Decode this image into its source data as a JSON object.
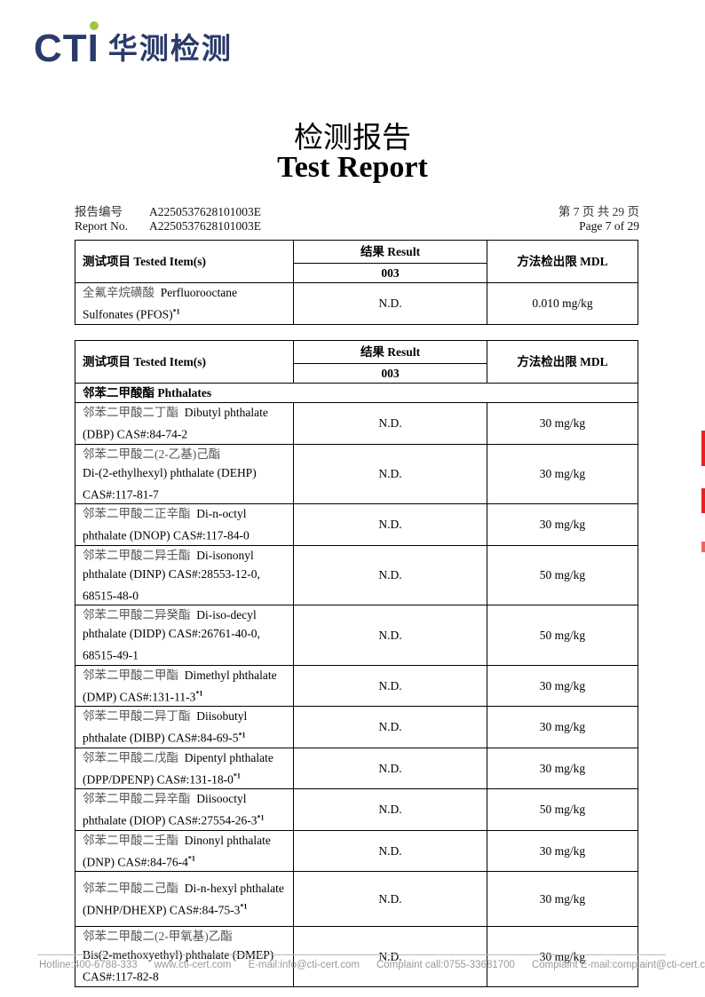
{
  "logo": {
    "brand": "CTI",
    "name_cn": "华测检测",
    "accent": "#9bc93b",
    "color": "#2b3a6b"
  },
  "title_cn": "检测报告",
  "title_en": "Test Report",
  "meta": {
    "report_no_label_cn": "报告编号",
    "report_no_label_en": "Report No.",
    "report_no": "A2250537628101003E",
    "page_cn": "第 7 页  共 29 页",
    "page_en": "Page 7 of 29"
  },
  "headers": {
    "item": "测试项目 Tested Item(s)",
    "result": "结果 Result",
    "sample": "003",
    "mdl": "方法检出限 MDL"
  },
  "table1": [
    {
      "cn": "全氟辛烷磺酸",
      "en": "Perfluorooctane Sulfonates (PFOS)",
      "sup": "*1",
      "result": "N.D.",
      "mdl": "0.010 mg/kg"
    }
  ],
  "table2": {
    "section": "邻苯二甲酸酯 Phthalates",
    "rows": [
      {
        "cn": "邻苯二甲酸二丁酯",
        "en": "Dibutyl phthalate (DBP) CAS#:84-74-2",
        "sup": "",
        "result": "N.D.",
        "mdl": "30 mg/kg"
      },
      {
        "cn": "邻苯二甲酸二(2-乙基)己酯",
        "en": "Di-(2-ethylhexyl) phthalate (DEHP) CAS#:117-81-7",
        "sup": "",
        "result": "N.D.",
        "mdl": "30 mg/kg",
        "br": true
      },
      {
        "cn": "邻苯二甲酸二正辛酯",
        "en": "Di-n-octyl phthalate (DNOP) CAS#:117-84-0",
        "sup": "",
        "result": "N.D.",
        "mdl": "30 mg/kg"
      },
      {
        "cn": "邻苯二甲酸二异壬酯",
        "en": "Di-isononyl phthalate (DINP) CAS#:28553-12-0, 68515-48-0",
        "sup": "",
        "result": "N.D.",
        "mdl": "50 mg/kg"
      },
      {
        "cn": "邻苯二甲酸二异癸酯",
        "en": "Di-iso-decyl phthalate (DIDP) CAS#:26761-40-0, 68515-49-1",
        "sup": "",
        "result": "N.D.",
        "mdl": "50 mg/kg"
      },
      {
        "cn": "邻苯二甲酸二甲酯",
        "en": "Dimethyl phthalate (DMP) CAS#:131-11-3",
        "sup": "*1",
        "result": "N.D.",
        "mdl": "30 mg/kg"
      },
      {
        "cn": "邻苯二甲酸二异丁酯",
        "en": "Diisobutyl phthalate (DIBP) CAS#:84-69-5",
        "sup": "*1",
        "result": "N.D.",
        "mdl": "30 mg/kg"
      },
      {
        "cn": "邻苯二甲酸二戊酯",
        "en": "Dipentyl phthalate (DPP/DPENP) CAS#:131-18-0",
        "sup": "*1",
        "result": "N.D.",
        "mdl": "30 mg/kg"
      },
      {
        "cn": "邻苯二甲酸二异辛酯",
        "en": "Diisooctyl phthalate (DIOP) CAS#:27554-26-3",
        "sup": "*1",
        "result": "N.D.",
        "mdl": "50 mg/kg"
      },
      {
        "cn": "邻苯二甲酸二壬酯",
        "en": "Dinonyl phthalate (DNP) CAS#:84-76-4",
        "sup": "*1",
        "result": "N.D.",
        "mdl": "30 mg/kg"
      },
      {
        "cn": "邻苯二甲酸二己酯",
        "en": "Di-n-hexyl phthalate (DNHP/DHEXP) CAS#:84-75-3",
        "sup": "*1",
        "result": "N.D.",
        "mdl": "30 mg/kg"
      },
      {
        "cn": "邻苯二甲酸二(2-甲氧基)乙酯",
        "en": "Bis(2-methoxyethyl) phthalate (DMEP) CAS#:117-82-8",
        "sup": "",
        "result": "N.D.",
        "mdl": "30 mg/kg",
        "br": true
      }
    ]
  },
  "footer": [
    "Hotline:400-6788-333",
    "www.cti-cert.com",
    "E-mail:info@cti-cert.com",
    "Complaint call:0755-33681700",
    "Complaint E-mail:complaint@cti-cert.com"
  ]
}
